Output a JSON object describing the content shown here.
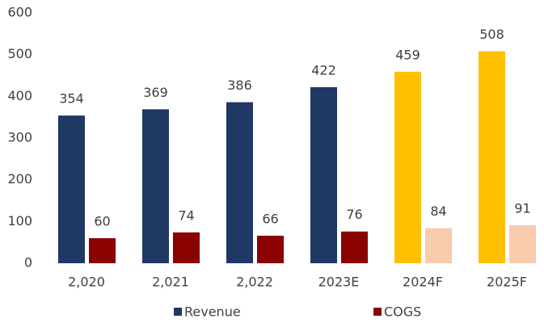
{
  "chart_data": {
    "type": "bar",
    "categories": [
      "2,020",
      "2,021",
      "2,022",
      "2023E",
      "2024F",
      "2025F"
    ],
    "series": [
      {
        "name": "Revenue",
        "color": "#1f3864",
        "colors": [
          "#1f3864",
          "#1f3864",
          "#1f3864",
          "#1f3864",
          "#ffc000",
          "#ffc000"
        ],
        "values": [
          354,
          369,
          386,
          422,
          459,
          508
        ]
      },
      {
        "name": "COGS",
        "color": "#8b0000",
        "colors": [
          "#8b0000",
          "#8b0000",
          "#8b0000",
          "#8b0000",
          "#f8cbad",
          "#f8cbad"
        ],
        "values": [
          60,
          74,
          66,
          76,
          84,
          91
        ]
      }
    ],
    "ylim": [
      0,
      600
    ],
    "yticks": [
      0,
      100,
      200,
      300,
      400,
      500,
      600
    ],
    "grid": false,
    "legend": "bottom"
  }
}
